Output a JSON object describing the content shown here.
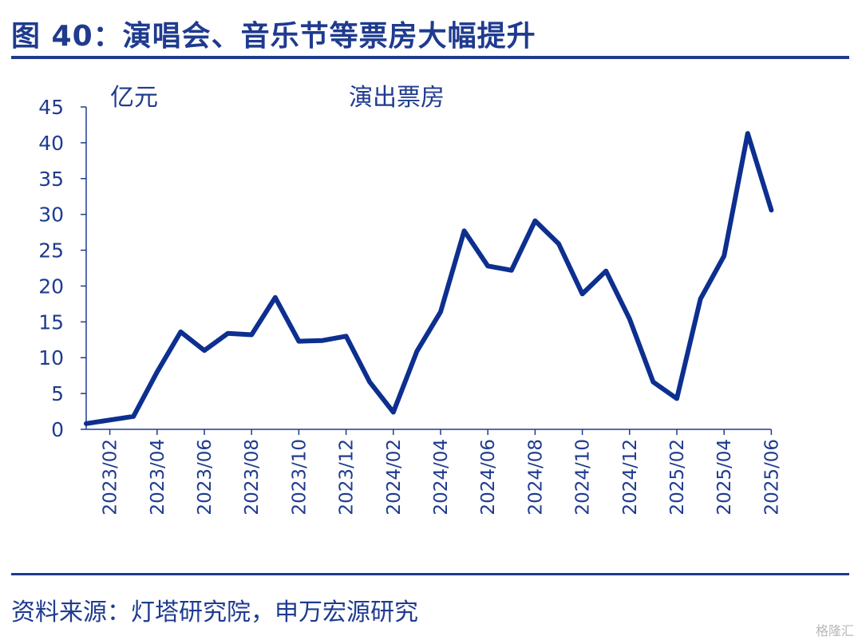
{
  "header": {
    "title": "图 40：演唱会、音乐节等票房大幅提升"
  },
  "footer": {
    "source": "资料来源：灯塔研究院，申万宏源研究",
    "watermark": "格隆汇"
  },
  "colors": {
    "brand": "#1f3b8f",
    "line": "#0d2f8f"
  },
  "chart_data": {
    "type": "line",
    "title": "",
    "unit": "亿元",
    "series_label": "演出票房",
    "ylim": [
      0,
      45
    ],
    "yticks": [
      0,
      5,
      10,
      15,
      20,
      25,
      30,
      35,
      40,
      45
    ],
    "x": [
      "2023/01",
      "2023/02",
      "2023/03",
      "2023/04",
      "2023/05",
      "2023/06",
      "2023/07",
      "2023/08",
      "2023/09",
      "2023/10",
      "2023/11",
      "2023/12",
      "2024/01",
      "2024/02",
      "2024/03",
      "2024/04",
      "2024/05",
      "2024/06",
      "2024/07",
      "2024/08",
      "2024/09",
      "2024/10",
      "2024/11",
      "2024/12",
      "2025/01",
      "2025/02",
      "2025/03",
      "2025/04",
      "2025/05",
      "2025/06"
    ],
    "xtick_labels": [
      "2023/02",
      "2023/04",
      "2023/06",
      "2023/08",
      "2023/10",
      "2023/12",
      "2024/02",
      "2024/04",
      "2024/06",
      "2024/08",
      "2024/10",
      "2024/12",
      "2025/02",
      "2025/04",
      "2025/06"
    ],
    "series": [
      {
        "name": "演出票房",
        "values": [
          0.8,
          1.3,
          1.8,
          8.0,
          13.6,
          11.0,
          13.4,
          13.2,
          18.4,
          12.3,
          12.4,
          13.0,
          6.6,
          2.4,
          10.9,
          16.4,
          27.7,
          22.8,
          22.2,
          29.1,
          25.9,
          18.9,
          22.1,
          15.4,
          6.6,
          4.3,
          18.2,
          24.2,
          41.3,
          30.6
        ]
      }
    ],
    "grid": false
  }
}
